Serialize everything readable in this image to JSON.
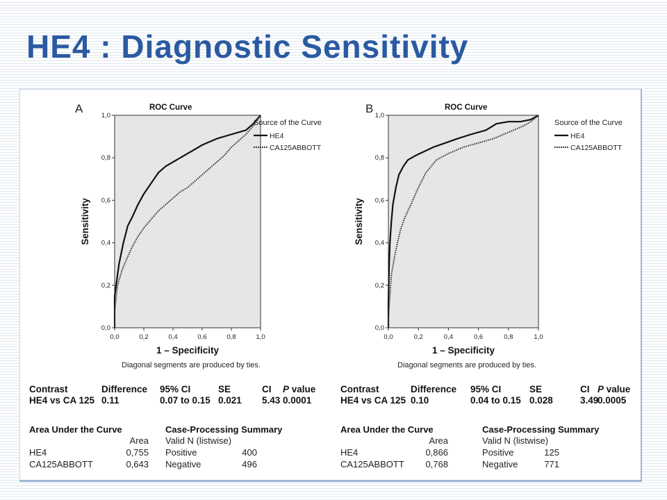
{
  "slide": {
    "title": "HE4 : Diagnostic Sensitivity"
  },
  "chart_data": [
    {
      "panel": "A",
      "type": "line",
      "title": "ROC Curve",
      "xlabel": "1 – Specificity",
      "ylabel": "Sensitivity",
      "xlim": [
        0,
        1
      ],
      "ylim": [
        0,
        1
      ],
      "xticks": [
        "0,0",
        "0,2",
        "0,4",
        "0,6",
        "0,8",
        "1,0"
      ],
      "yticks": [
        "0,0",
        "0,2",
        "0,4",
        "0,6",
        "0,8",
        "1,0"
      ],
      "legend_title": "Source of the Curve",
      "legend_position": "right",
      "footnote": "Diagonal segments are produced by ties.",
      "series": [
        {
          "name": "HE4",
          "style": "solid",
          "x": [
            0,
            0,
            0.01,
            0.03,
            0.06,
            0.09,
            0.12,
            0.16,
            0.2,
            0.25,
            0.3,
            0.35,
            0.4,
            0.45,
            0.5,
            0.55,
            0.6,
            0.7,
            0.8,
            0.9,
            0.95,
            1.0
          ],
          "y": [
            0,
            0.15,
            0.2,
            0.3,
            0.4,
            0.48,
            0.52,
            0.58,
            0.63,
            0.68,
            0.73,
            0.76,
            0.78,
            0.8,
            0.82,
            0.84,
            0.86,
            0.89,
            0.91,
            0.93,
            0.96,
            1.0
          ]
        },
        {
          "name": "CA125ABBOTT",
          "style": "dotted",
          "x": [
            0,
            0,
            0.02,
            0.05,
            0.08,
            0.12,
            0.16,
            0.2,
            0.25,
            0.3,
            0.35,
            0.4,
            0.45,
            0.5,
            0.55,
            0.6,
            0.65,
            0.7,
            0.75,
            0.8,
            0.85,
            0.9,
            0.95,
            1.0
          ],
          "y": [
            0,
            0.08,
            0.2,
            0.27,
            0.32,
            0.38,
            0.43,
            0.47,
            0.51,
            0.55,
            0.58,
            0.61,
            0.64,
            0.66,
            0.69,
            0.72,
            0.75,
            0.78,
            0.81,
            0.85,
            0.88,
            0.91,
            0.95,
            1.0
          ]
        }
      ],
      "stats": {
        "headers": [
          "Contrast",
          "Difference",
          "95% CI",
          "SE",
          "CI",
          "P value"
        ],
        "row": [
          "HE4 vs CA 125",
          "0.11",
          "0.07 to 0.15",
          "0.021",
          "5.43",
          "0.0001"
        ]
      },
      "auc": {
        "title": "Area Under the Curve",
        "col": "Area",
        "rows": [
          {
            "label": "HE4",
            "value": "0,755"
          },
          {
            "label": "CA125ABBOTT",
            "value": "0,643"
          }
        ]
      },
      "cases": {
        "title": "Case-Processing Summary",
        "col": "Valid N (listwise)",
        "rows": [
          {
            "label": "Positive",
            "value": "400"
          },
          {
            "label": "Negative",
            "value": "496"
          }
        ]
      }
    },
    {
      "panel": "B",
      "type": "line",
      "title": "ROC Curve",
      "xlabel": "1 – Specificity",
      "ylabel": "Sensitivity",
      "xlim": [
        0,
        1
      ],
      "ylim": [
        0,
        1
      ],
      "xticks": [
        "0,0",
        "0,2",
        "0,4",
        "0,6",
        "0,8",
        "1,0"
      ],
      "yticks": [
        "0,0",
        "0,2",
        "0,4",
        "0,6",
        "0,8",
        "1,0"
      ],
      "legend_title": "Source of the Curve",
      "legend_position": "right",
      "footnote": "Diagonal segments are produced by ties.",
      "series": [
        {
          "name": "HE4",
          "style": "solid",
          "x": [
            0,
            0,
            0.005,
            0.01,
            0.02,
            0.03,
            0.05,
            0.07,
            0.1,
            0.13,
            0.18,
            0.24,
            0.3,
            0.38,
            0.46,
            0.55,
            0.65,
            0.72,
            0.8,
            0.88,
            0.95,
            1.0
          ],
          "y": [
            0,
            0.12,
            0.3,
            0.4,
            0.5,
            0.58,
            0.66,
            0.72,
            0.76,
            0.79,
            0.81,
            0.83,
            0.85,
            0.87,
            0.89,
            0.91,
            0.93,
            0.96,
            0.97,
            0.97,
            0.98,
            1.0
          ]
        },
        {
          "name": "CA125ABBOTT",
          "style": "dotted",
          "x": [
            0,
            0,
            0.01,
            0.02,
            0.04,
            0.06,
            0.08,
            0.11,
            0.15,
            0.2,
            0.25,
            0.32,
            0.4,
            0.5,
            0.6,
            0.7,
            0.8,
            0.9,
            0.95,
            1.0
          ],
          "y": [
            0,
            0.05,
            0.15,
            0.25,
            0.33,
            0.4,
            0.46,
            0.52,
            0.58,
            0.66,
            0.73,
            0.79,
            0.82,
            0.85,
            0.87,
            0.89,
            0.92,
            0.95,
            0.97,
            1.0
          ]
        }
      ],
      "stats": {
        "headers": [
          "Contrast",
          "Difference",
          "95% CI",
          "SE",
          "CI",
          "P value"
        ],
        "row": [
          "HE4 vs CA 125",
          "0.10",
          "0.04 to  0.15",
          "0.028",
          "3.49",
          "0.0005"
        ]
      },
      "auc": {
        "title": "Area Under the Curve",
        "col": "Area",
        "rows": [
          {
            "label": "HE4",
            "value": "0,866"
          },
          {
            "label": "CA125ABBOTT",
            "value": "0,768"
          }
        ]
      },
      "cases": {
        "title": "Case-Processing Summary",
        "col": "Valid N (listwise)",
        "rows": [
          {
            "label": "Positive",
            "value": "125"
          },
          {
            "label": "Negative",
            "value": "771"
          }
        ]
      }
    }
  ]
}
